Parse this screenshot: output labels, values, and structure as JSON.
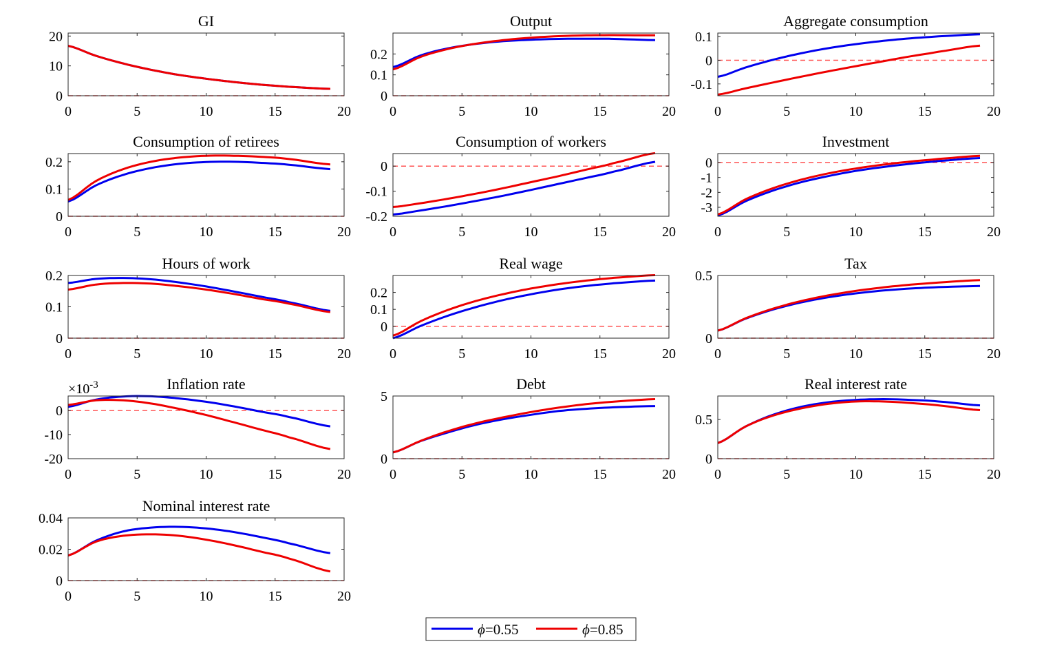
{
  "colors": {
    "blue": "#0000ee",
    "red": "#ee0000",
    "zero_line": "#ff5050"
  },
  "legend": {
    "placement": "bottom-center",
    "items": [
      {
        "symbol": "ϕ",
        "label": "=0.55",
        "color": "#0000ee"
      },
      {
        "symbol": "ϕ",
        "label": "=0.85",
        "color": "#ee0000"
      }
    ]
  },
  "chart_data": [
    {
      "type": "line",
      "title": "GI",
      "xlim": [
        0,
        20
      ],
      "xticks": [
        "0",
        "5",
        "10",
        "15",
        "20"
      ],
      "ylim": [
        0,
        21
      ],
      "yticks": [
        {
          "v": 0,
          "t": "0"
        },
        {
          "v": 10,
          "t": "10"
        },
        {
          "v": 20,
          "t": "20"
        }
      ],
      "series": [
        {
          "color": "blue",
          "x": [
            0,
            2,
            4,
            6,
            8,
            10,
            12,
            14,
            16,
            19
          ],
          "y": [
            16.7,
            13.4,
            10.8,
            8.7,
            7.0,
            5.7,
            4.6,
            3.7,
            3.0,
            2.3
          ]
        },
        {
          "color": "red",
          "x": [
            0,
            2,
            4,
            6,
            8,
            10,
            12,
            14,
            16,
            19
          ],
          "y": [
            16.7,
            13.4,
            10.8,
            8.7,
            7.0,
            5.7,
            4.6,
            3.7,
            3.0,
            2.3
          ]
        }
      ]
    },
    {
      "type": "line",
      "title": "Output",
      "xlim": [
        0,
        20
      ],
      "xticks": [
        "0",
        "5",
        "10",
        "15",
        "20"
      ],
      "ylim": [
        0,
        0.3
      ],
      "yticks": [
        {
          "v": 0,
          "t": "0"
        },
        {
          "v": 0.1,
          "t": "0.1"
        },
        {
          "v": 0.2,
          "t": "0.2"
        }
      ],
      "series": [
        {
          "color": "blue",
          "x": [
            0,
            2,
            4,
            6,
            8,
            10,
            12,
            14,
            16,
            19
          ],
          "y": [
            0.137,
            0.193,
            0.227,
            0.248,
            0.261,
            0.268,
            0.272,
            0.273,
            0.272,
            0.266
          ]
        },
        {
          "color": "red",
          "x": [
            0,
            2,
            4,
            6,
            8,
            10,
            12,
            14,
            16,
            19
          ],
          "y": [
            0.126,
            0.186,
            0.224,
            0.249,
            0.266,
            0.278,
            0.285,
            0.289,
            0.29,
            0.289
          ]
        }
      ]
    },
    {
      "type": "line",
      "title": "Aggregate consumption",
      "xlim": [
        0,
        20
      ],
      "xticks": [
        "0",
        "5",
        "10",
        "15",
        "20"
      ],
      "ylim": [
        -0.15,
        0.115
      ],
      "yticks": [
        {
          "v": -0.1,
          "t": "-0.1"
        },
        {
          "v": 0,
          "t": "0"
        },
        {
          "v": 0.1,
          "t": "0.1"
        }
      ],
      "series": [
        {
          "color": "blue",
          "x": [
            0,
            2,
            4,
            6,
            8,
            10,
            12,
            14,
            16,
            19
          ],
          "y": [
            -0.07,
            -0.031,
            0.002,
            0.029,
            0.051,
            0.068,
            0.082,
            0.093,
            0.101,
            0.11
          ]
        },
        {
          "color": "red",
          "x": [
            0,
            2,
            4,
            6,
            8,
            10,
            12,
            14,
            16,
            19
          ],
          "y": [
            -0.145,
            -0.119,
            -0.094,
            -0.07,
            -0.047,
            -0.025,
            -0.004,
            0.017,
            0.036,
            0.062
          ]
        }
      ]
    },
    {
      "type": "line",
      "title": "Consumption of retirees",
      "xlim": [
        0,
        20
      ],
      "xticks": [
        "0",
        "5",
        "10",
        "15",
        "20"
      ],
      "ylim": [
        0,
        0.23
      ],
      "yticks": [
        {
          "v": 0,
          "t": "0"
        },
        {
          "v": 0.1,
          "t": "0.1"
        },
        {
          "v": 0.2,
          "t": "0.2"
        }
      ],
      "series": [
        {
          "color": "blue",
          "x": [
            0,
            2,
            4,
            6,
            8,
            10,
            12,
            14,
            16,
            19
          ],
          "y": [
            0.054,
            0.113,
            0.152,
            0.177,
            0.192,
            0.199,
            0.2,
            0.196,
            0.189,
            0.173
          ]
        },
        {
          "color": "red",
          "x": [
            0,
            2,
            4,
            6,
            8,
            10,
            12,
            14,
            16,
            19
          ],
          "y": [
            0.06,
            0.129,
            0.173,
            0.2,
            0.215,
            0.222,
            0.222,
            0.218,
            0.21,
            0.19
          ]
        }
      ]
    },
    {
      "type": "line",
      "title": "Consumption of workers",
      "xlim": [
        0,
        20
      ],
      "xticks": [
        "0",
        "5",
        "10",
        "15",
        "20"
      ],
      "ylim": [
        -0.2,
        0.05
      ],
      "yticks": [
        {
          "v": -0.2,
          "t": "-0.2"
        },
        {
          "v": -0.1,
          "t": "-0.1"
        },
        {
          "v": 0,
          "t": "0"
        }
      ],
      "series": [
        {
          "color": "blue",
          "x": [
            0,
            2,
            4,
            6,
            8,
            10,
            12,
            14,
            16,
            19
          ],
          "y": [
            -0.193,
            -0.177,
            -0.159,
            -0.139,
            -0.118,
            -0.095,
            -0.071,
            -0.047,
            -0.022,
            0.017
          ]
        },
        {
          "color": "red",
          "x": [
            0,
            2,
            4,
            6,
            8,
            10,
            12,
            14,
            16,
            19
          ],
          "y": [
            -0.163,
            -0.148,
            -0.13,
            -0.11,
            -0.088,
            -0.064,
            -0.04,
            -0.014,
            0.012,
            0.052
          ]
        }
      ]
    },
    {
      "type": "line",
      "title": "Investment",
      "xlim": [
        0,
        20
      ],
      "xticks": [
        "0",
        "5",
        "10",
        "15",
        "20"
      ],
      "ylim": [
        -3.6,
        0.6
      ],
      "yticks": [
        {
          "v": -3,
          "t": "-3"
        },
        {
          "v": -2,
          "t": "-2"
        },
        {
          "v": -1,
          "t": "-1"
        },
        {
          "v": 0,
          "t": "0"
        }
      ],
      "series": [
        {
          "color": "blue",
          "x": [
            0,
            2,
            4,
            6,
            8,
            10,
            12,
            14,
            16,
            19
          ],
          "y": [
            -3.55,
            -2.6,
            -1.88,
            -1.33,
            -0.91,
            -0.56,
            -0.3,
            -0.08,
            0.1,
            0.3
          ]
        },
        {
          "color": "red",
          "x": [
            0,
            2,
            4,
            6,
            8,
            10,
            12,
            14,
            16,
            19
          ],
          "y": [
            -3.48,
            -2.47,
            -1.72,
            -1.16,
            -0.73,
            -0.4,
            -0.14,
            0.07,
            0.24,
            0.45
          ]
        }
      ]
    },
    {
      "type": "line",
      "title": "Hours of work",
      "xlim": [
        0,
        20
      ],
      "xticks": [
        "0",
        "5",
        "10",
        "15",
        "20"
      ],
      "ylim": [
        0,
        0.2
      ],
      "yticks": [
        {
          "v": 0,
          "t": "0"
        },
        {
          "v": 0.1,
          "t": "0.1"
        },
        {
          "v": 0.2,
          "t": "0.2"
        }
      ],
      "series": [
        {
          "color": "blue",
          "x": [
            0,
            2,
            4,
            6,
            8,
            10,
            12,
            14,
            16,
            19
          ],
          "y": [
            0.176,
            0.189,
            0.192,
            0.188,
            0.178,
            0.165,
            0.149,
            0.132,
            0.115,
            0.087
          ]
        },
        {
          "color": "red",
          "x": [
            0,
            2,
            4,
            6,
            8,
            10,
            12,
            14,
            16,
            19
          ],
          "y": [
            0.155,
            0.171,
            0.176,
            0.174,
            0.166,
            0.155,
            0.141,
            0.125,
            0.11,
            0.083
          ]
        }
      ]
    },
    {
      "type": "line",
      "title": "Real wage",
      "xlim": [
        0,
        20
      ],
      "xticks": [
        "0",
        "5",
        "10",
        "15",
        "20"
      ],
      "ylim": [
        -0.07,
        0.3
      ],
      "yticks": [
        {
          "v": 0,
          "t": "0"
        },
        {
          "v": 0.1,
          "t": "0.1"
        },
        {
          "v": 0.2,
          "t": "0.2"
        }
      ],
      "series": [
        {
          "color": "blue",
          "x": [
            0,
            2,
            4,
            6,
            8,
            10,
            12,
            14,
            16,
            19
          ],
          "y": [
            -0.07,
            0.002,
            0.063,
            0.113,
            0.155,
            0.189,
            0.217,
            0.238,
            0.254,
            0.27
          ]
        },
        {
          "color": "red",
          "x": [
            0,
            2,
            4,
            6,
            8,
            10,
            12,
            14,
            16,
            19
          ],
          "y": [
            -0.055,
            0.03,
            0.097,
            0.149,
            0.19,
            0.223,
            0.249,
            0.27,
            0.286,
            0.302
          ]
        }
      ]
    },
    {
      "type": "line",
      "title": "Tax",
      "xlim": [
        0,
        20
      ],
      "xticks": [
        "0",
        "5",
        "10",
        "15",
        "20"
      ],
      "ylim": [
        0,
        0.5
      ],
      "yticks": [
        {
          "v": 0,
          "t": "0"
        },
        {
          "v": 0.5,
          "t": "0.5"
        }
      ],
      "series": [
        {
          "color": "blue",
          "x": [
            0,
            2,
            4,
            6,
            8,
            10,
            12,
            14,
            16,
            19
          ],
          "y": [
            0.06,
            0.155,
            0.228,
            0.284,
            0.326,
            0.357,
            0.38,
            0.396,
            0.407,
            0.416
          ]
        },
        {
          "color": "red",
          "x": [
            0,
            2,
            4,
            6,
            8,
            10,
            12,
            14,
            16,
            19
          ],
          "y": [
            0.06,
            0.158,
            0.235,
            0.295,
            0.341,
            0.377,
            0.405,
            0.427,
            0.444,
            0.463
          ]
        }
      ]
    },
    {
      "type": "line",
      "title": "Inflation rate",
      "y_exponent": "×10",
      "y_exponent_power": "-3",
      "xlim": [
        0,
        20
      ],
      "xticks": [
        "0",
        "5",
        "10",
        "15",
        "20"
      ],
      "ylim": [
        -20,
        6
      ],
      "yticks": [
        {
          "v": -20,
          "t": "-20"
        },
        {
          "v": -10,
          "t": "-10"
        },
        {
          "v": 0,
          "t": "0"
        }
      ],
      "series": [
        {
          "color": "blue",
          "x": [
            0,
            2,
            4,
            6,
            8,
            10,
            12,
            14,
            16,
            19
          ],
          "y": [
            1.5,
            4.5,
            5.8,
            5.9,
            5.0,
            3.6,
            1.7,
            -0.5,
            -2.7,
            -6.6
          ]
        },
        {
          "color": "red",
          "x": [
            0,
            2,
            4,
            6,
            8,
            10,
            12,
            14,
            16,
            19
          ],
          "y": [
            2.3,
            4.2,
            4.2,
            2.9,
            0.7,
            -1.9,
            -4.9,
            -8.0,
            -11.1,
            -16.0
          ]
        }
      ]
    },
    {
      "type": "line",
      "title": "Debt",
      "xlim": [
        0,
        20
      ],
      "xticks": [
        "0",
        "5",
        "10",
        "15",
        "20"
      ],
      "ylim": [
        0,
        5
      ],
      "yticks": [
        {
          "v": 0,
          "t": "0"
        },
        {
          "v": 5,
          "t": "5"
        }
      ],
      "series": [
        {
          "color": "blue",
          "x": [
            0,
            2,
            4,
            6,
            8,
            10,
            12,
            14,
            16,
            19
          ],
          "y": [
            0.5,
            1.4,
            2.1,
            2.7,
            3.15,
            3.5,
            3.8,
            3.98,
            4.1,
            4.2
          ]
        },
        {
          "color": "red",
          "x": [
            0,
            2,
            4,
            6,
            8,
            10,
            12,
            14,
            16,
            19
          ],
          "y": [
            0.5,
            1.42,
            2.2,
            2.82,
            3.3,
            3.72,
            4.07,
            4.35,
            4.55,
            4.75
          ]
        }
      ]
    },
    {
      "type": "line",
      "title": "Real interest rate",
      "xlim": [
        0,
        20
      ],
      "xticks": [
        "0",
        "5",
        "10",
        "15",
        "20"
      ],
      "ylim": [
        0,
        0.8
      ],
      "yticks": [
        {
          "v": 0,
          "t": "0"
        },
        {
          "v": 0.5,
          "t": "0.5"
        }
      ],
      "series": [
        {
          "color": "blue",
          "x": [
            0,
            2,
            4,
            6,
            8,
            10,
            12,
            14,
            16,
            19
          ],
          "y": [
            0.2,
            0.41,
            0.56,
            0.66,
            0.72,
            0.75,
            0.76,
            0.75,
            0.73,
            0.68
          ]
        },
        {
          "color": "red",
          "x": [
            0,
            2,
            4,
            6,
            8,
            10,
            12,
            14,
            16,
            19
          ],
          "y": [
            0.2,
            0.41,
            0.55,
            0.64,
            0.7,
            0.73,
            0.73,
            0.71,
            0.68,
            0.62
          ]
        }
      ]
    },
    {
      "type": "line",
      "title": "Nominal interest rate",
      "xlim": [
        0,
        20
      ],
      "xticks": [
        "0",
        "5",
        "10",
        "15",
        "20"
      ],
      "ylim": [
        0,
        0.04
      ],
      "yticks": [
        {
          "v": 0,
          "t": "0"
        },
        {
          "v": 0.02,
          "t": "0.02"
        },
        {
          "v": 0.04,
          "t": "0.04"
        }
      ],
      "series": [
        {
          "color": "blue",
          "x": [
            0,
            2,
            4,
            6,
            8,
            10,
            12,
            14,
            16,
            19
          ],
          "y": [
            0.016,
            0.0254,
            0.0314,
            0.0338,
            0.0343,
            0.0333,
            0.031,
            0.0277,
            0.0238,
            0.0175
          ]
        },
        {
          "color": "red",
          "x": [
            0,
            2,
            4,
            6,
            8,
            10,
            12,
            14,
            16,
            19
          ],
          "y": [
            0.016,
            0.0248,
            0.0286,
            0.0295,
            0.0286,
            0.0261,
            0.0226,
            0.0184,
            0.0141,
            0.0058
          ]
        }
      ]
    }
  ]
}
